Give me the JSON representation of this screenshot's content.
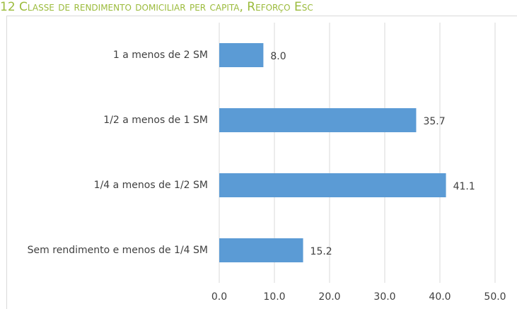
{
  "chart_data": {
    "type": "hbar",
    "title": "12 Classe de rendimento domiciliar per capita, Reforço Esc",
    "categories": [
      "1 a menos de 2 SM",
      "1/2 a menos de 1 SM",
      "1/4 a menos de 1/2 SM",
      "Sem rendimento e menos de 1/4 SM"
    ],
    "values": [
      8.0,
      35.7,
      41.1,
      15.2
    ],
    "value_labels": [
      "8.0",
      "35.7",
      "41.1",
      "15.2"
    ],
    "color": "#5b9bd5",
    "xlim": [
      0,
      50
    ],
    "xticks": [
      {
        "value": 0,
        "label": "0.0"
      },
      {
        "value": 10,
        "label": "10.0"
      },
      {
        "value": 20,
        "label": "20.0"
      },
      {
        "value": 30,
        "label": "30.0"
      },
      {
        "value": 40,
        "label": "40.0"
      },
      {
        "value": 50,
        "label": "50.0"
      }
    ],
    "grid": true
  }
}
